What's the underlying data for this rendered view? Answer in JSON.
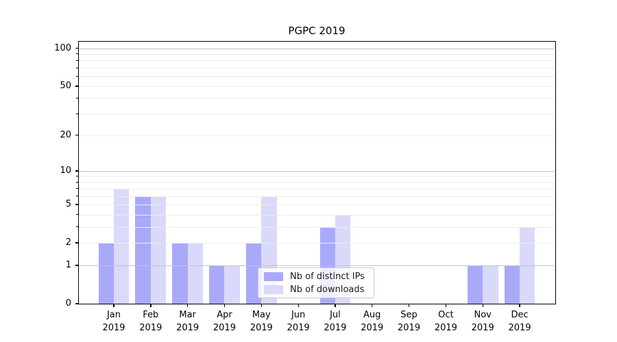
{
  "chart_data": {
    "type": "bar",
    "title": "PGPC 2019",
    "categories": [
      "Jan",
      "Feb",
      "Mar",
      "Apr",
      "May",
      "Jun",
      "Jul",
      "Aug",
      "Sep",
      "Oct",
      "Nov",
      "Dec"
    ],
    "x_year_label": "2019",
    "series": [
      {
        "name": "Nb of distinct IPs",
        "color": "#a9a9fa",
        "values": [
          2,
          6,
          2,
          1,
          2,
          0,
          3,
          0,
          0,
          0,
          1,
          1
        ]
      },
      {
        "name": "Nb of downloads",
        "color": "#d9d9fa",
        "values": [
          7,
          6,
          2,
          1,
          6,
          0,
          4,
          0,
          0,
          0,
          1,
          3
        ]
      }
    ],
    "scale": "log1p",
    "ylim": [
      0,
      114
    ],
    "ytick_labels": [
      0,
      1,
      2,
      5,
      10,
      20,
      50,
      100
    ],
    "major_gridlines": [
      1,
      10,
      100
    ],
    "minor_gridlines": [
      2,
      3,
      4,
      5,
      6,
      7,
      8,
      9,
      20,
      30,
      40,
      50,
      60,
      70,
      80,
      90
    ],
    "grid": {
      "major_color": "#c3c3c3",
      "minor_color": "#ececec"
    },
    "axis_color": "#000000",
    "legend_position": "lower center",
    "grid_above_bars": true
  }
}
